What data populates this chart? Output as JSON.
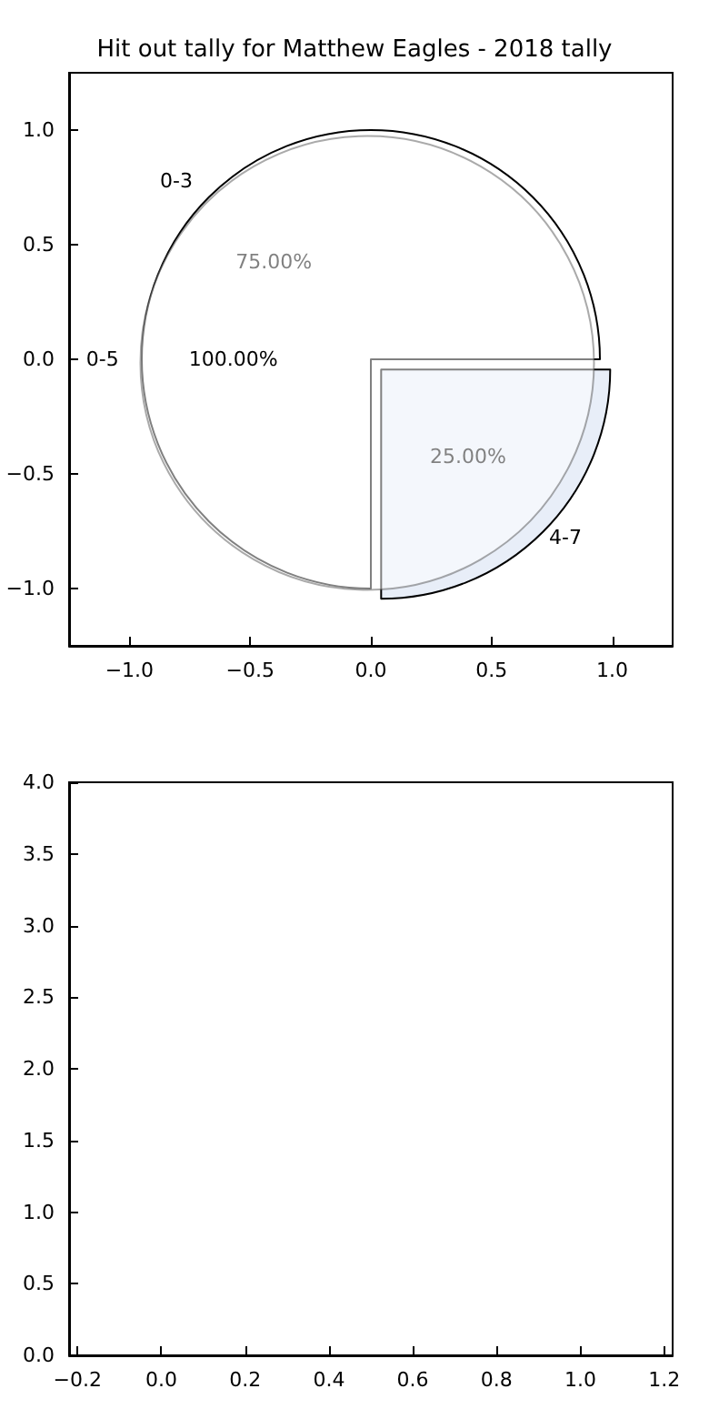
{
  "chart_data": [
    {
      "type": "scatter",
      "title": "Hit out tally for Matthew Eagles - 2018 tally",
      "xlim": [
        -1.25,
        1.25
      ],
      "xticks": [
        {
          "value": -1,
          "label": "−1.0"
        },
        {
          "value": -0.5,
          "label": "−0.5"
        },
        {
          "value": 0,
          "label": "0.0"
        },
        {
          "value": 0.5,
          "label": "0.5"
        },
        {
          "value": 1,
          "label": "1.0"
        }
      ],
      "ylim": [
        -1.25,
        1.25
      ],
      "yticks": [
        {
          "value": -1,
          "label": "−1.0"
        },
        {
          "value": -0.5,
          "label": "−0.5"
        },
        {
          "value": 0,
          "label": "0.0"
        },
        {
          "value": 0.5,
          "label": "0.5"
        },
        {
          "value": 1,
          "label": "1.0"
        }
      ]
    },
    {
      "type": "pie",
      "categories": [
        "0-3",
        "4-7"
      ],
      "values": [
        75,
        25
      ],
      "colors": [
        "#ffffff",
        "#e8eef8"
      ],
      "value_labels": [
        "75.00%",
        "25.00%"
      ]
    },
    {
      "type": "pie",
      "categories": [
        "0-5"
      ],
      "values": [
        100
      ],
      "colors": [
        "#ffffff"
      ],
      "value_labels": [
        "100.00%"
      ]
    },
    {
      "type": "scatter",
      "xlim": [
        -0.22,
        1.22
      ],
      "xticks": [
        {
          "value": -0.2,
          "label": "−0.2"
        },
        {
          "value": 0,
          "label": "0.0"
        },
        {
          "value": 0.2,
          "label": "0.2"
        },
        {
          "value": 0.4,
          "label": "0.4"
        },
        {
          "value": 0.6,
          "label": "0.6"
        },
        {
          "value": 0.8,
          "label": "0.8"
        },
        {
          "value": 1,
          "label": "1.0"
        },
        {
          "value": 1.2,
          "label": "1.2"
        }
      ],
      "ylim": [
        0,
        4
      ],
      "yticks": [
        {
          "value": 0,
          "label": "0.0"
        },
        {
          "value": 0.5,
          "label": "0.5"
        },
        {
          "value": 1,
          "label": "1.0"
        },
        {
          "value": 1.5,
          "label": "1.5"
        },
        {
          "value": 2,
          "label": "2.0"
        },
        {
          "value": 2.5,
          "label": "2.5"
        },
        {
          "value": 3,
          "label": "3.0"
        },
        {
          "value": 3.5,
          "label": "3.5"
        },
        {
          "value": 4,
          "label": "4.0"
        }
      ]
    }
  ]
}
